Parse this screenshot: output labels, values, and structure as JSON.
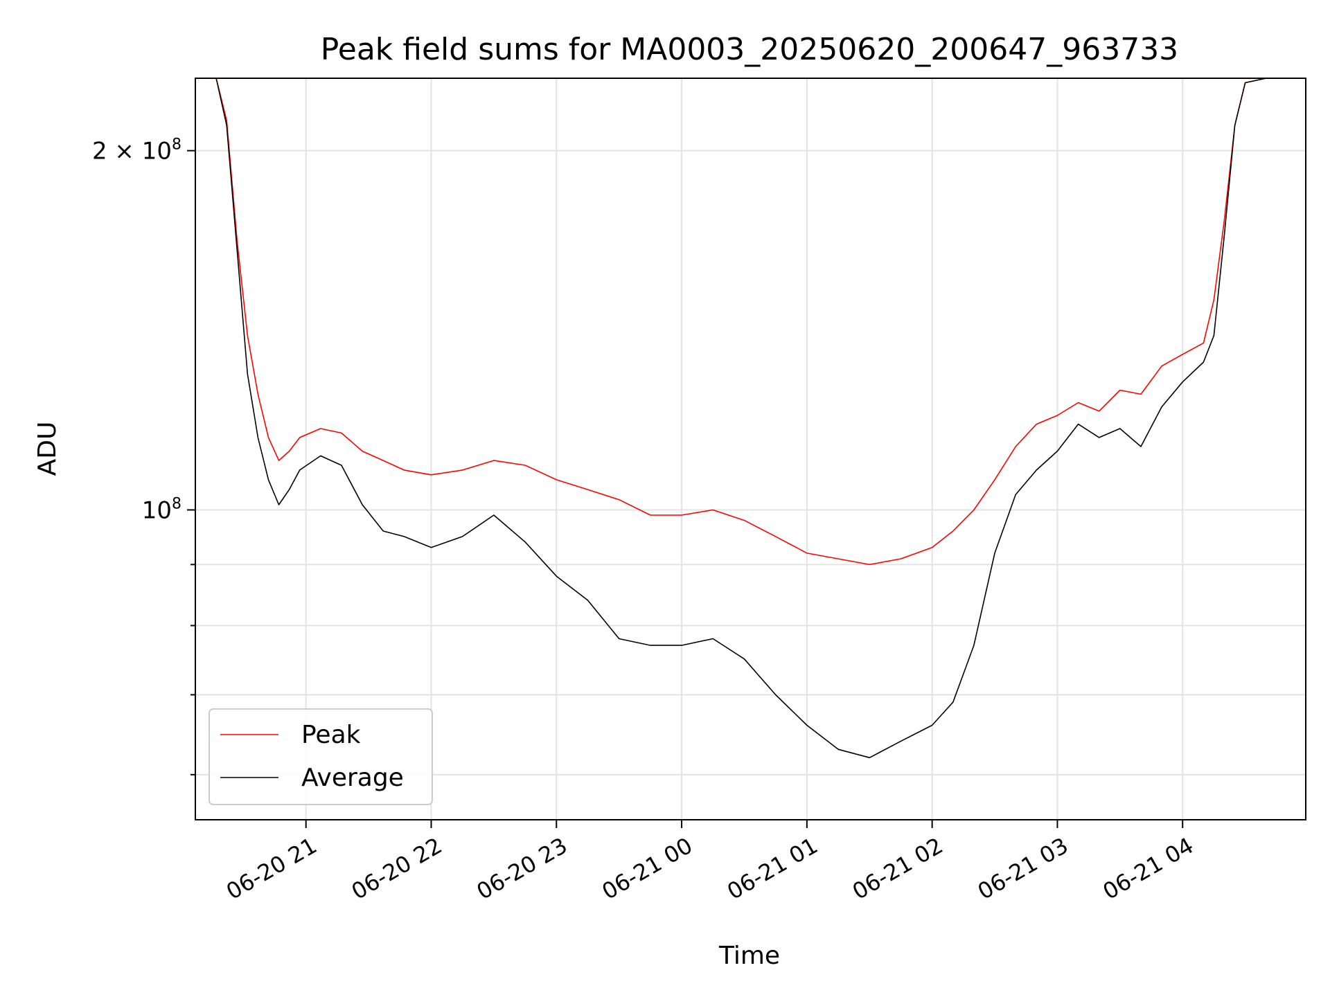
{
  "chart_data": {
    "type": "line",
    "title": "Peak field sums for MA0003_20250620_200647_963733",
    "xlabel": "Time",
    "ylabel": "ADU",
    "yscale": "log",
    "ylim": [
      55000000,
      230000000
    ],
    "xlim": [
      "06-20 20:07",
      "06-21 04:59"
    ],
    "grid": true,
    "legend_position": "lower-left",
    "x_ticks": [
      {
        "t": "06-20 21:00",
        "label": "06-20 21"
      },
      {
        "t": "06-20 22:00",
        "label": "06-20 22"
      },
      {
        "t": "06-20 23:00",
        "label": "06-20 23"
      },
      {
        "t": "06-21 00:00",
        "label": "06-21 00"
      },
      {
        "t": "06-21 01:00",
        "label": "06-21 01"
      },
      {
        "t": "06-21 02:00",
        "label": "06-21 02"
      },
      {
        "t": "06-21 03:00",
        "label": "06-21 03"
      },
      {
        "t": "06-21 04:00",
        "label": "06-21 04"
      }
    ],
    "y_major_ticks": [
      {
        "value": 100000000,
        "mantissa": "",
        "exponent": "8"
      },
      {
        "value": 200000000,
        "mantissa": "2",
        "exponent": "8"
      }
    ],
    "y_minor_ticks": [
      60000000,
      70000000,
      80000000,
      90000000
    ],
    "series": [
      {
        "name": "Peak",
        "color": "#ff0000",
        "x": [
          "06-20 20:07",
          "06-20 20:17",
          "06-20 20:22",
          "06-20 20:27",
          "06-20 20:32",
          "06-20 20:37",
          "06-20 20:42",
          "06-20 20:47",
          "06-20 20:52",
          "06-20 20:57",
          "06-20 21:07",
          "06-20 21:17",
          "06-20 21:27",
          "06-20 21:37",
          "06-20 21:47",
          "06-20 22:00",
          "06-20 22:15",
          "06-20 22:30",
          "06-20 22:45",
          "06-20 23:00",
          "06-20 23:15",
          "06-20 23:30",
          "06-20 23:45",
          "06-21 00:00",
          "06-21 00:15",
          "06-21 00:30",
          "06-21 00:45",
          "06-21 01:00",
          "06-21 01:15",
          "06-21 01:30",
          "06-21 01:45",
          "06-21 02:00",
          "06-21 02:10",
          "06-21 02:20",
          "06-21 02:30",
          "06-21 02:40",
          "06-21 02:50",
          "06-21 03:00",
          "06-21 03:10",
          "06-21 03:20",
          "06-21 03:30",
          "06-21 03:40",
          "06-21 03:50",
          "06-21 04:00",
          "06-21 04:10",
          "06-21 04:15",
          "06-21 04:20",
          "06-21 04:25",
          "06-21 04:30",
          "06-21 04:40",
          "06-21 04:59"
        ],
        "values": [
          230000000,
          230000000,
          212000000,
          168000000,
          140000000,
          125000000,
          115000000,
          110000000,
          112000000,
          115000000,
          117000000,
          116000000,
          112000000,
          110000000,
          108000000,
          107000000,
          108000000,
          110000000,
          109000000,
          106000000,
          104000000,
          102000000,
          99000000,
          99000000,
          100000000,
          98000000,
          95000000,
          92000000,
          91000000,
          90000000,
          91000000,
          93000000,
          96000000,
          100000000,
          106000000,
          113000000,
          118000000,
          120000000,
          123000000,
          121000000,
          126000000,
          125000000,
          132000000,
          135000000,
          138000000,
          150000000,
          175000000,
          210000000,
          228000000,
          230000000,
          230000000
        ]
      },
      {
        "name": "Average",
        "color": "#000000",
        "x": [
          "06-20 20:07",
          "06-20 20:17",
          "06-20 20:22",
          "06-20 20:27",
          "06-20 20:32",
          "06-20 20:37",
          "06-20 20:42",
          "06-20 20:47",
          "06-20 20:52",
          "06-20 20:57",
          "06-20 21:07",
          "06-20 21:17",
          "06-20 21:27",
          "06-20 21:37",
          "06-20 21:47",
          "06-20 22:00",
          "06-20 22:15",
          "06-20 22:30",
          "06-20 22:45",
          "06-20 23:00",
          "06-20 23:15",
          "06-20 23:30",
          "06-20 23:45",
          "06-21 00:00",
          "06-21 00:15",
          "06-21 00:30",
          "06-21 00:45",
          "06-21 01:00",
          "06-21 01:15",
          "06-21 01:30",
          "06-21 01:45",
          "06-21 02:00",
          "06-21 02:10",
          "06-21 02:20",
          "06-21 02:30",
          "06-21 02:40",
          "06-21 02:50",
          "06-21 03:00",
          "06-21 03:10",
          "06-21 03:20",
          "06-21 03:30",
          "06-21 03:40",
          "06-21 03:50",
          "06-21 04:00",
          "06-21 04:10",
          "06-21 04:15",
          "06-21 04:20",
          "06-21 04:25",
          "06-21 04:30",
          "06-21 04:40",
          "06-21 04:59"
        ],
        "values": [
          230000000,
          230000000,
          210000000,
          165000000,
          130000000,
          115000000,
          106000000,
          101000000,
          104000000,
          108000000,
          111000000,
          109000000,
          101000000,
          96000000,
          95000000,
          93000000,
          95000000,
          99000000,
          94000000,
          88000000,
          84000000,
          78000000,
          77000000,
          77000000,
          78000000,
          75000000,
          70000000,
          66000000,
          63000000,
          62000000,
          64000000,
          66000000,
          69000000,
          77000000,
          92000000,
          103000000,
          108000000,
          112000000,
          118000000,
          115000000,
          117000000,
          113000000,
          122000000,
          128000000,
          133000000,
          140000000,
          170000000,
          210000000,
          228000000,
          230000000,
          230000000
        ]
      }
    ]
  }
}
